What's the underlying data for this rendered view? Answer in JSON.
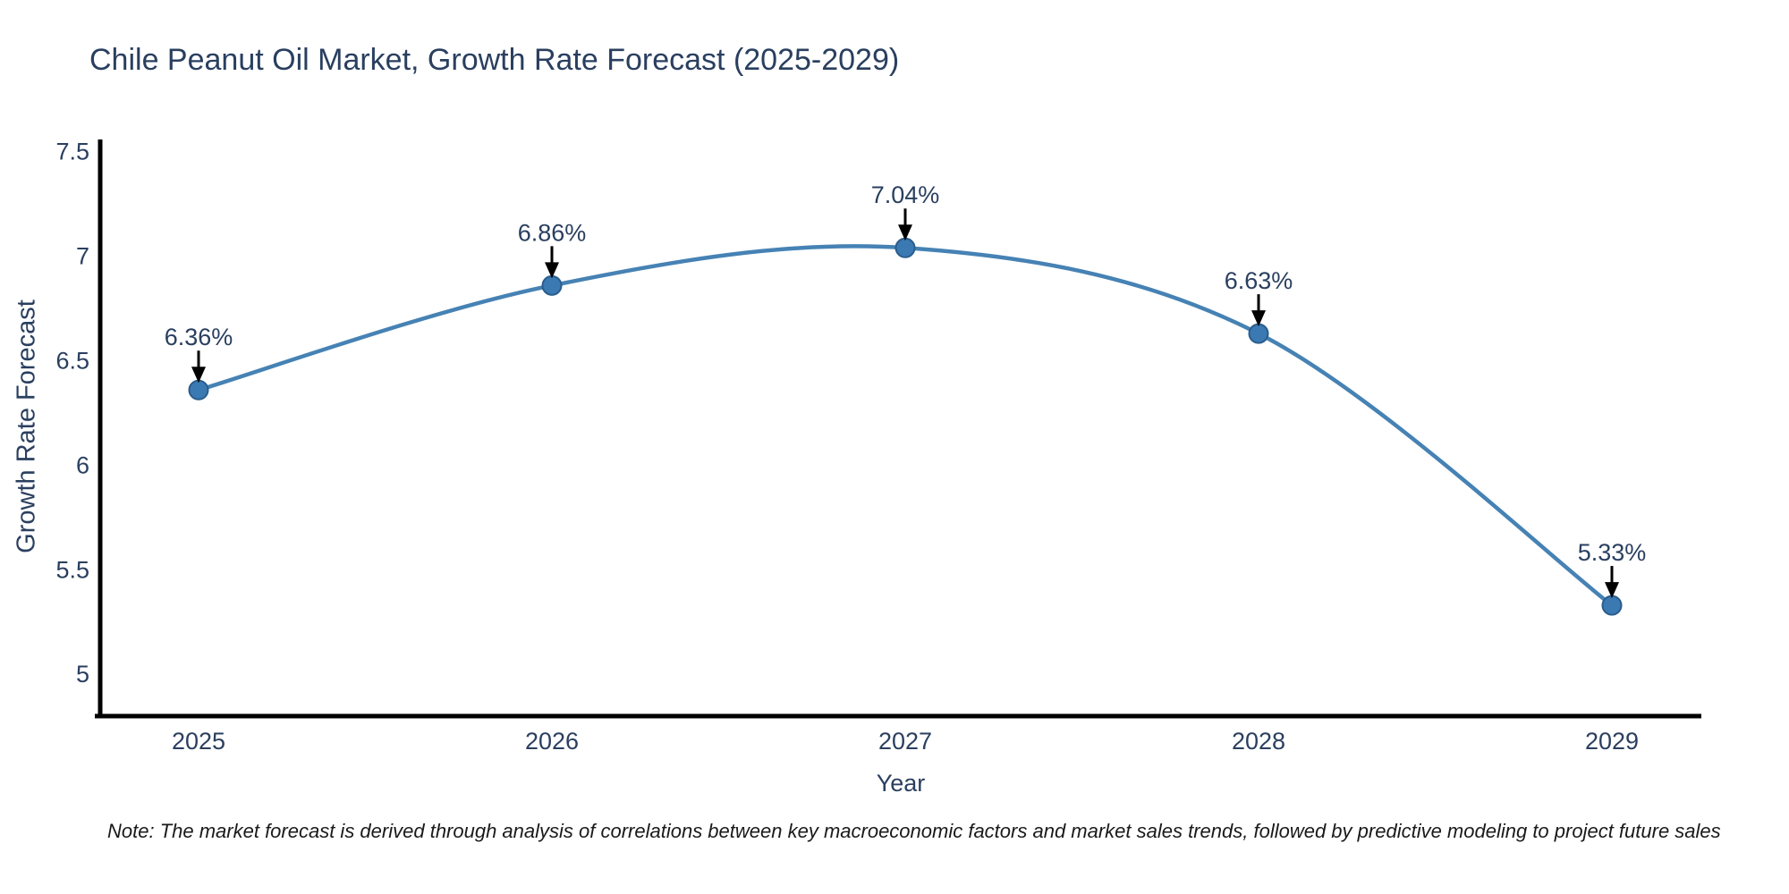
{
  "chart_data": {
    "type": "line",
    "title": "Chile Peanut Oil Market, Growth Rate Forecast (2025-2029)",
    "xlabel": "Year",
    "ylabel": "Growth Rate Forecast",
    "categories": [
      "2025",
      "2026",
      "2027",
      "2028",
      "2029"
    ],
    "series": [
      {
        "name": "Growth Rate Forecast",
        "values": [
          6.36,
          6.86,
          7.04,
          6.63,
          5.33
        ]
      }
    ],
    "point_labels": [
      "6.36%",
      "6.86%",
      "7.04%",
      "6.63%",
      "5.33%"
    ],
    "ylim": [
      4.8,
      7.55
    ],
    "yticks": [
      5,
      5.5,
      6,
      6.5,
      7,
      7.5
    ],
    "grid": false,
    "legend": "none",
    "line_shape": "spline",
    "colors": {
      "line": "#4682b4",
      "marker": "#3b79b3",
      "marker_edge": "#2a5d8c",
      "axis": "#000000",
      "arrow": "#000000",
      "text": "#2a3f5f",
      "note_text": "#1a1a1a",
      "background": "#ffffff"
    }
  },
  "note": {
    "text": "Note: The market forecast is derived through analysis of correlations between key macroeconomic factors and market sales trends, followed by predictive modeling to project future sales"
  }
}
